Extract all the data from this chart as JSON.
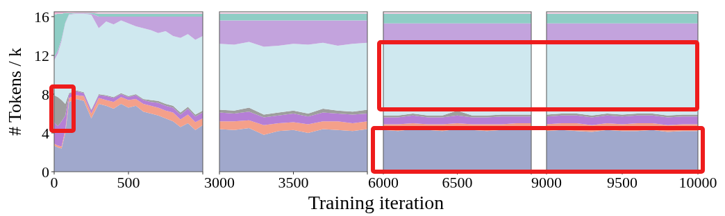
{
  "chart_data": [
    {
      "type": "area",
      "stacked": true,
      "ylabel": "# Tokens / k",
      "xlabel": "Training iteration",
      "xlim": [
        0,
        1000
      ],
      "xticks": [
        0,
        500,
        {
          "value": 1000,
          "label": null
        }
      ],
      "ylim": [
        0,
        16.5
      ],
      "yticks": [
        0,
        4,
        8,
        12,
        16
      ],
      "x": [
        0,
        25,
        50,
        75,
        100,
        150,
        200,
        250,
        300,
        350,
        400,
        450,
        500,
        550,
        600,
        650,
        700,
        750,
        800,
        850,
        900,
        950,
        1000
      ],
      "series": [
        {
          "color": "#a0a8cc",
          "values": [
            2.7,
            2.5,
            2.4,
            4,
            7.2,
            7.5,
            7.3,
            5.5,
            7.0,
            6.8,
            6.5,
            7.0,
            6.6,
            6.8,
            6.2,
            6.0,
            5.8,
            5.5,
            5.2,
            4.6,
            5.0,
            4.3,
            4.8
          ]
        },
        {
          "color": "#f4a08a",
          "values": [
            0.2,
            0.2,
            0.2,
            0.3,
            0.4,
            0.4,
            0.5,
            0.5,
            0.6,
            0.6,
            0.7,
            0.7,
            0.8,
            0.7,
            0.8,
            0.8,
            0.8,
            0.8,
            0.9,
            0.8,
            0.9,
            0.8,
            0.7
          ]
        },
        {
          "color": "#b57fd6",
          "values": [
            2.2,
            2.0,
            2.6,
            1.5,
            0.4,
            0.4,
            0.3,
            0.3,
            0.3,
            0.4,
            0.4,
            0.3,
            0.3,
            0.4,
            0.4,
            0.4,
            0.5,
            0.5,
            0.5,
            0.5,
            0.6,
            0.6,
            0.6
          ]
        },
        {
          "color": "#9e9e9e",
          "values": [
            2.8,
            3.0,
            2.2,
            1.2,
            0.1,
            0.1,
            0.1,
            0.1,
            0.1,
            0.1,
            0.1,
            0.1,
            0.1,
            0.1,
            0.1,
            0.2,
            0.2,
            0.2,
            0.2,
            0.2,
            0.2,
            0.2,
            0.2
          ]
        },
        {
          "color": "#cfe8ef",
          "values": [
            3.6,
            4.5,
            6.1,
            8.3,
            8.1,
            7.9,
            8.1,
            9.8,
            6.8,
            7.6,
            7.5,
            7.5,
            7.5,
            7.0,
            7.3,
            7.2,
            7.0,
            7.5,
            7.2,
            7.7,
            7.5,
            7.7,
            7.7
          ]
        },
        {
          "color": "#c3a3dd",
          "values": [
            0.3,
            0.3,
            0.2,
            0.1,
            0.05,
            0.05,
            0.05,
            0.1,
            1.2,
            0.5,
            0.8,
            0.4,
            0.7,
            1.0,
            1.2,
            1.4,
            1.7,
            1.5,
            2.0,
            2.2,
            1.8,
            2.4,
            2.0
          ]
        },
        {
          "color": "#8fcdc5",
          "values": [
            4.4,
            3.8,
            2.6,
            1.0,
            0.1,
            0.05,
            0.05,
            0.1,
            0.3,
            0.3,
            0.3,
            0.3,
            0.3,
            0.3,
            0.3,
            0.3,
            0.3,
            0.3,
            0.3,
            0.3,
            0.3,
            0.3,
            0.3
          ]
        },
        {
          "color": "#f0b8d8",
          "values": [
            0.3,
            0.2,
            0.2,
            0.1,
            0.1,
            0.1,
            0.1,
            0.1,
            0.1,
            0.1,
            0.1,
            0.1,
            0.1,
            0.1,
            0.1,
            0.1,
            0.1,
            0.1,
            0.1,
            0.1,
            0.1,
            0.1,
            0.1
          ]
        }
      ]
    },
    {
      "type": "area",
      "stacked": true,
      "tick_labels": "x",
      "xlim": [
        3000,
        4000
      ],
      "xticks": [
        3000,
        3500,
        {
          "value": 4000,
          "label": null
        }
      ],
      "ylim": [
        0,
        16.5
      ],
      "x": [
        3000,
        3100,
        3200,
        3300,
        3400,
        3500,
        3600,
        3700,
        3800,
        3900,
        4000
      ],
      "series": [
        {
          "color": "#a0a8cc",
          "values": [
            4.4,
            4.3,
            4.5,
            3.8,
            4.2,
            4.3,
            4.0,
            4.4,
            4.3,
            4.2,
            4.4
          ]
        },
        {
          "color": "#f4a08a",
          "values": [
            0.8,
            0.9,
            0.8,
            1.0,
            0.8,
            0.8,
            0.9,
            0.8,
            0.9,
            0.8,
            0.8
          ]
        },
        {
          "color": "#b57fd6",
          "values": [
            0.9,
            0.8,
            0.9,
            0.8,
            0.8,
            0.9,
            0.8,
            0.9,
            0.8,
            0.9,
            0.8
          ]
        },
        {
          "color": "#9e9e9e",
          "values": [
            0.3,
            0.3,
            0.4,
            0.3,
            0.3,
            0.3,
            0.3,
            0.4,
            0.3,
            0.3,
            0.4
          ]
        },
        {
          "color": "#cfe8ef",
          "values": [
            6.8,
            6.8,
            6.8,
            7.0,
            6.9,
            6.9,
            7.1,
            6.8,
            6.7,
            7.0,
            6.9
          ]
        },
        {
          "color": "#c3a3dd",
          "values": [
            2.4,
            2.5,
            2.2,
            2.7,
            2.6,
            2.4,
            2.5,
            2.3,
            2.6,
            2.4,
            2.3
          ]
        },
        {
          "color": "#8fcdc5",
          "values": [
            0.7,
            0.7,
            0.7,
            0.7,
            0.7,
            0.7,
            0.7,
            0.7,
            0.7,
            0.7,
            0.7
          ]
        },
        {
          "color": "#f0b8d8",
          "values": [
            0.1,
            0.1,
            0.1,
            0.1,
            0.1,
            0.1,
            0.1,
            0.1,
            0.1,
            0.1,
            0.1
          ]
        }
      ]
    },
    {
      "type": "area",
      "stacked": true,
      "tick_labels": "x",
      "xlim": [
        6000,
        7000
      ],
      "xticks": [
        6000,
        6500,
        {
          "value": 7000,
          "label": null
        }
      ],
      "ylim": [
        0,
        16.5
      ],
      "x": [
        6000,
        6100,
        6200,
        6300,
        6400,
        6500,
        6600,
        6700,
        6800,
        6900,
        7000
      ],
      "series": [
        {
          "color": "#a0a8cc",
          "values": [
            4.3,
            4.2,
            4.4,
            4.3,
            4.2,
            4.4,
            4.3,
            4.2,
            4.3,
            4.4,
            4.3
          ]
        },
        {
          "color": "#f4a08a",
          "values": [
            0.6,
            0.7,
            0.6,
            0.6,
            0.7,
            0.6,
            0.6,
            0.7,
            0.6,
            0.6,
            0.7
          ]
        },
        {
          "color": "#b57fd6",
          "values": [
            0.7,
            0.7,
            0.8,
            0.7,
            0.7,
            0.8,
            0.7,
            0.7,
            0.8,
            0.7,
            0.7
          ]
        },
        {
          "color": "#9e9e9e",
          "values": [
            0.2,
            0.2,
            0.2,
            0.2,
            0.2,
            0.5,
            0.2,
            0.2,
            0.2,
            0.2,
            0.2
          ]
        },
        {
          "color": "#cfe8ef",
          "values": [
            7.3,
            7.3,
            7.1,
            7.3,
            7.3,
            6.8,
            7.3,
            7.3,
            7.2,
            7.2,
            7.2
          ]
        },
        {
          "color": "#c3a3dd",
          "values": [
            2.2,
            2.2,
            2.2,
            2.2,
            2.2,
            2.2,
            2.2,
            2.2,
            2.2,
            2.2,
            2.2
          ]
        },
        {
          "color": "#8fcdc5",
          "values": [
            1.0,
            1.0,
            1.0,
            1.0,
            1.0,
            1.0,
            1.0,
            1.0,
            1.0,
            1.0,
            1.0
          ]
        },
        {
          "color": "#f0b8d8",
          "values": [
            0.1,
            0.1,
            0.1,
            0.1,
            0.1,
            0.1,
            0.1,
            0.1,
            0.1,
            0.1,
            0.1
          ]
        }
      ]
    },
    {
      "type": "area",
      "stacked": true,
      "tick_labels": "x",
      "xlim": [
        9000,
        10000
      ],
      "xticks": [
        9000,
        9500,
        10000
      ],
      "ylim": [
        0,
        16.5
      ],
      "x": [
        9000,
        9100,
        9200,
        9300,
        9400,
        9500,
        9600,
        9700,
        9800,
        9900,
        10000
      ],
      "series": [
        {
          "color": "#a0a8cc",
          "values": [
            4.2,
            4.3,
            4.2,
            4.1,
            4.3,
            4.2,
            4.2,
            4.3,
            4.1,
            4.2,
            4.2
          ]
        },
        {
          "color": "#f4a08a",
          "values": [
            0.7,
            0.7,
            0.8,
            0.7,
            0.7,
            0.7,
            0.8,
            0.7,
            0.7,
            0.7,
            0.7
          ]
        },
        {
          "color": "#b57fd6",
          "values": [
            0.8,
            0.8,
            0.8,
            0.8,
            0.8,
            0.8,
            0.8,
            0.8,
            0.8,
            0.8,
            0.8
          ]
        },
        {
          "color": "#9e9e9e",
          "values": [
            0.2,
            0.2,
            0.2,
            0.2,
            0.2,
            0.2,
            0.2,
            0.2,
            0.2,
            0.2,
            0.2
          ]
        },
        {
          "color": "#cfe8ef",
          "values": [
            7.2,
            7.1,
            7.1,
            7.3,
            7.1,
            7.2,
            7.1,
            7.1,
            7.3,
            7.2,
            7.2
          ]
        },
        {
          "color": "#c3a3dd",
          "values": [
            2.2,
            2.2,
            2.2,
            2.2,
            2.2,
            2.2,
            2.2,
            2.2,
            2.2,
            2.2,
            2.2
          ]
        },
        {
          "color": "#8fcdc5",
          "values": [
            1.0,
            1.0,
            1.0,
            1.0,
            1.0,
            1.0,
            1.0,
            1.0,
            1.0,
            1.0,
            1.0
          ]
        },
        {
          "color": "#f0b8d8",
          "values": [
            0.1,
            0.1,
            0.1,
            0.1,
            0.1,
            0.1,
            0.1,
            0.1,
            0.1,
            0.1,
            0.1
          ]
        }
      ]
    }
  ]
}
